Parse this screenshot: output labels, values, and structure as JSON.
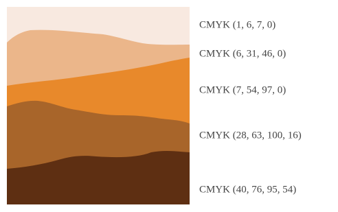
{
  "swatches": [
    {
      "label": "CMYK (1, 6, 7, 0)"
    },
    {
      "label": "CMYK (6, 31, 46, 0)"
    },
    {
      "label": "CMYK (7, 54, 97, 0)"
    },
    {
      "label": "CMYK (28, 63, 100, 16)"
    },
    {
      "label": "CMYK (40, 76, 95, 54)"
    }
  ]
}
